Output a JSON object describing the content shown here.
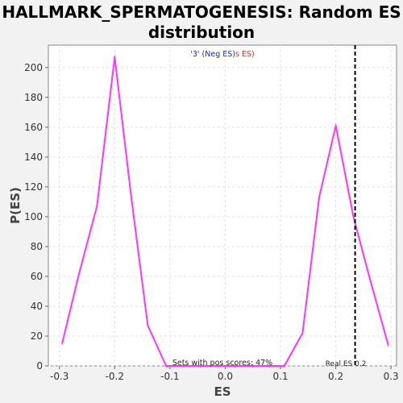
{
  "chart_data": {
    "type": "line",
    "title": "HALLMARK_SPERMATOGENESIS: Random ES distribution",
    "title_lines": [
      "HALLMARK_SPERMATOGENESIS: Random ES",
      "distribution"
    ],
    "xlabel": "ES",
    "ylabel": "P(ES)",
    "xlim": [
      -0.32,
      0.31
    ],
    "ylim": [
      0,
      215
    ],
    "x_ticks": [
      -0.3,
      -0.2,
      -0.1,
      0.0,
      0.1,
      0.2,
      0.3
    ],
    "x_tick_labels": [
      "-0.3",
      "-0.2",
      "-0.1",
      "0.0",
      "0.1",
      "0.2",
      "0.3"
    ],
    "y_ticks": [
      0,
      20,
      40,
      60,
      80,
      100,
      120,
      140,
      160,
      180,
      200
    ],
    "y_tick_labels": [
      "0",
      "20",
      "40",
      "60",
      "80",
      "100",
      "120",
      "140",
      "160",
      "180",
      "200"
    ],
    "grid": true,
    "series": [
      {
        "color": "#ff33ff",
        "x": [
          -0.295,
          -0.265,
          -0.232,
          -0.2,
          -0.17,
          -0.14,
          -0.107,
          -0.075,
          -0.045,
          -0.012,
          0.018,
          0.05,
          0.08,
          0.107,
          0.14,
          0.17,
          0.2,
          0.232,
          0.262,
          0.295
        ],
        "y": [
          15,
          61,
          107,
          207,
          113,
          27,
          0,
          0,
          0,
          0,
          0,
          0,
          0,
          0,
          22,
          113,
          161,
          100,
          58,
          14
        ]
      }
    ],
    "reference_line": {
      "x": 0.235,
      "style": "dashed",
      "color": "#000000"
    },
    "annotations": {
      "legend_text_blue": "'3' (Neg ES)",
      "legend_text_red": "s ES)",
      "pos_scores_text": "Sets with pos scores: 47%",
      "real_es_text": "Real ES 0.2"
    },
    "colors": {
      "legend_blue": "#2222dd",
      "legend_red": "#ee2222",
      "background": "#f2f2f2",
      "plot_background": "#ffffff"
    }
  }
}
